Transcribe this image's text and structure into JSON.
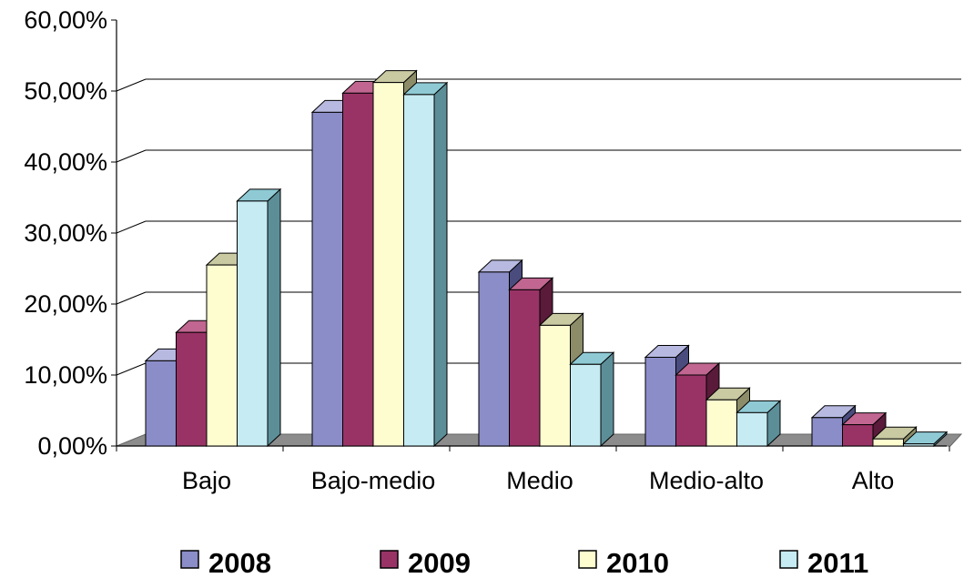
{
  "chart_data": {
    "type": "bar",
    "title": "",
    "xlabel": "",
    "ylabel": "",
    "categories": [
      "Bajo",
      "Bajo-medio",
      "Medio",
      "Medio-alto",
      "Alto"
    ],
    "ylim": [
      0,
      60
    ],
    "yticks": [
      0,
      10,
      20,
      30,
      40,
      50,
      60
    ],
    "ytick_labels": [
      "0,00%",
      "10,00%",
      "20,00%",
      "30,00%",
      "40,00%",
      "50,00%",
      "60,00%"
    ],
    "grid": true,
    "style": "3d-clustered-column",
    "legend_position": "bottom",
    "series": [
      {
        "name": "2008",
        "values": [
          12.0,
          47.0,
          24.5,
          12.5,
          4.0
        ],
        "color": "#8b8dc8",
        "top": "#b7b9e0",
        "side": "#4a4c7e"
      },
      {
        "name": "2009",
        "values": [
          16.0,
          49.7,
          22.0,
          10.0,
          3.0
        ],
        "color": "#993366",
        "top": "#c06690",
        "side": "#5a1a3a"
      },
      {
        "name": "2010",
        "values": [
          25.5,
          51.2,
          17.0,
          6.5,
          1.0
        ],
        "color": "#fdfdd0",
        "top": "#c9c9a2",
        "side": "#8c8c68"
      },
      {
        "name": "2011",
        "values": [
          34.5,
          49.5,
          11.5,
          4.7,
          0.3
        ],
        "color": "#c6ebf3",
        "top": "#8fcad4",
        "side": "#5c8e98"
      }
    ]
  }
}
